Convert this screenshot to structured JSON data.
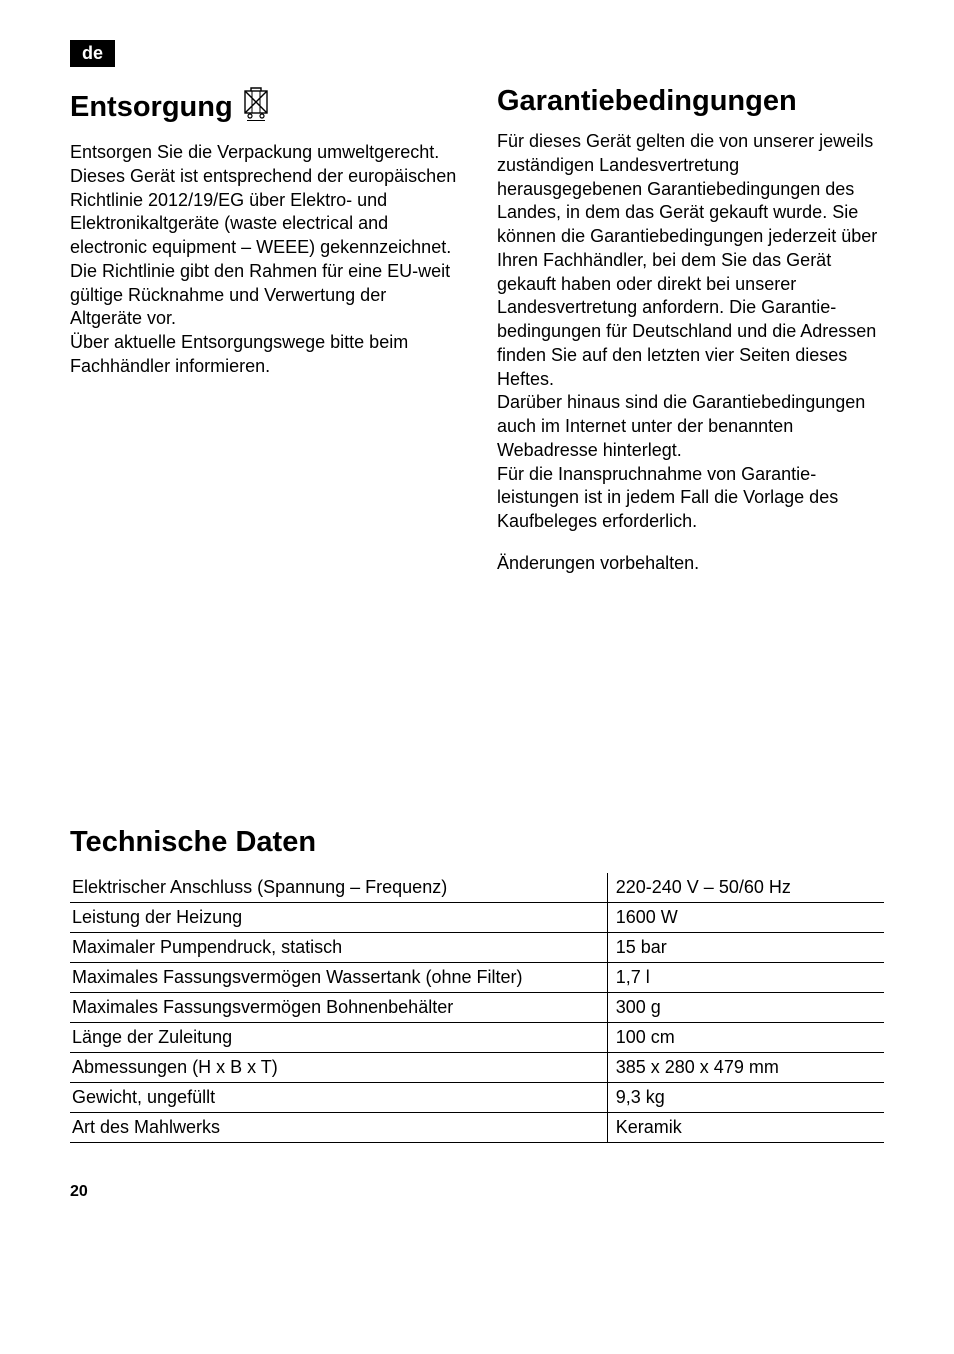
{
  "lang_badge": "de",
  "page_number": "20",
  "left": {
    "heading": "Entsorgung",
    "icon_name": "weee-bin-icon",
    "paragraphs": [
      "Entsorgen Sie die Verpackung umwelt­gerecht. Dieses Gerät ist entsprechend der europäischen Richtlinie 2012/19/EG über Elektro- und Elektronikaltgeräte (waste electrical and electronic equipment – WEEE) gekennzeichnet.",
      "Die Richtlinie gibt den Rahmen für eine EU-weit gültige Rücknahme und Verwer­tung der Altgeräte vor.",
      "Über aktuelle Entsorgungswege bitte beim Fachhändler informieren."
    ]
  },
  "right": {
    "heading": "Garantiebedingungen",
    "paragraphs": [
      "Für dieses Gerät gelten die von unserer jeweils zuständigen Landesvertretung herausgegebenen Garantiebedingungen des Landes, in dem das Gerät gekauft wurde. Sie können die Garantiebedingungen jederzeit über Ihren Fachhändler, bei dem Sie das Gerät gekauft haben oder direkt bei unserer Landesvertretung anfordern. Die Garantie­bedingungen für Deutschland und die Adressen finden Sie auf den letzten vier Seiten dieses Heftes.",
      "Darüber hinaus sind die Garantie­bedingungen auch im Internet unter der benannten Webadresse hinterlegt.",
      "Für die Inanspruchnahme von Garantie­leistungen ist in jedem Fall die Vorlage des Kaufbeleges erforderlich."
    ],
    "footer": "Änderungen vorbehalten."
  },
  "tech": {
    "heading": "Technische Daten",
    "rows": [
      {
        "label": "Elektrischer Anschluss (Spannung – Frequenz)",
        "value": "220-240 V – 50/60 Hz"
      },
      {
        "label": "Leistung der Heizung",
        "value": "1600 W"
      },
      {
        "label": "Maximaler Pumpendruck, statisch",
        "value": "15 bar"
      },
      {
        "label": "Maximales Fassungsvermögen Wassertank (ohne Filter)",
        "value": "1,7 l"
      },
      {
        "label": "Maximales Fassungsvermögen Bohnenbehälter",
        "value": "300 g"
      },
      {
        "label": "Länge der Zuleitung",
        "value": "100 cm"
      },
      {
        "label": "Abmessungen (H x B x T)",
        "value": "385 x 280 x 479 mm"
      },
      {
        "label": "Gewicht, ungefüllt",
        "value": "9,3 kg"
      },
      {
        "label": "Art des Mahlwerks",
        "value": "Keramik"
      }
    ]
  }
}
